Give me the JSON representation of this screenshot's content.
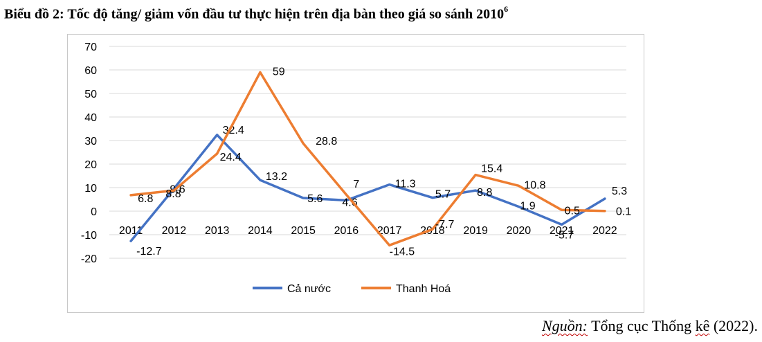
{
  "title": {
    "text": "Biểu đồ 2: Tốc độ tăng/ giảm vốn đầu tư thực hiện trên địa bàn theo giá so sánh 2010",
    "footnote_mark": "6"
  },
  "source": {
    "label": "Nguồn:",
    "text_a": "Tổng cục Thống",
    "text_b": "kê",
    "text_c": "(2022)."
  },
  "chart_data": {
    "type": "line",
    "title": "",
    "xlabel": "",
    "ylabel": "",
    "categories": [
      "2011",
      "2012",
      "2013",
      "2014",
      "2015",
      "2016",
      "2017",
      "2018",
      "2019",
      "2020",
      "2021",
      "2022"
    ],
    "ylim": [
      -20,
      70
    ],
    "yticks": [
      70,
      60,
      50,
      40,
      30,
      20,
      10,
      0,
      -10,
      -20
    ],
    "grid": true,
    "legend": "bottom",
    "series": [
      {
        "name": "Cả nước",
        "color": "#4472c4",
        "values": [
          -12.7,
          9.6,
          32.4,
          13.2,
          5.6,
          4.6,
          11.3,
          5.7,
          8.8,
          1.9,
          -5.7,
          5.3
        ],
        "labels": [
          "-12.7",
          "9.6",
          "32.4",
          "13.2",
          "5.6",
          "4.6",
          "11.3",
          "5.7",
          "8.8",
          "1.9",
          "-5.7",
          "5.3"
        ]
      },
      {
        "name": "Thanh Hoá",
        "color": "#ed7d31",
        "values": [
          6.8,
          8.8,
          24.4,
          59,
          28.8,
          7,
          -14.5,
          -7.7,
          15.4,
          10.8,
          0.5,
          0.1
        ],
        "labels": [
          "6.8",
          "8.8",
          "24.4",
          "59",
          "28.8",
          "7",
          "-14.5",
          "-7.7",
          "15.4",
          "10.8",
          "0.5",
          "0.1"
        ]
      }
    ]
  }
}
